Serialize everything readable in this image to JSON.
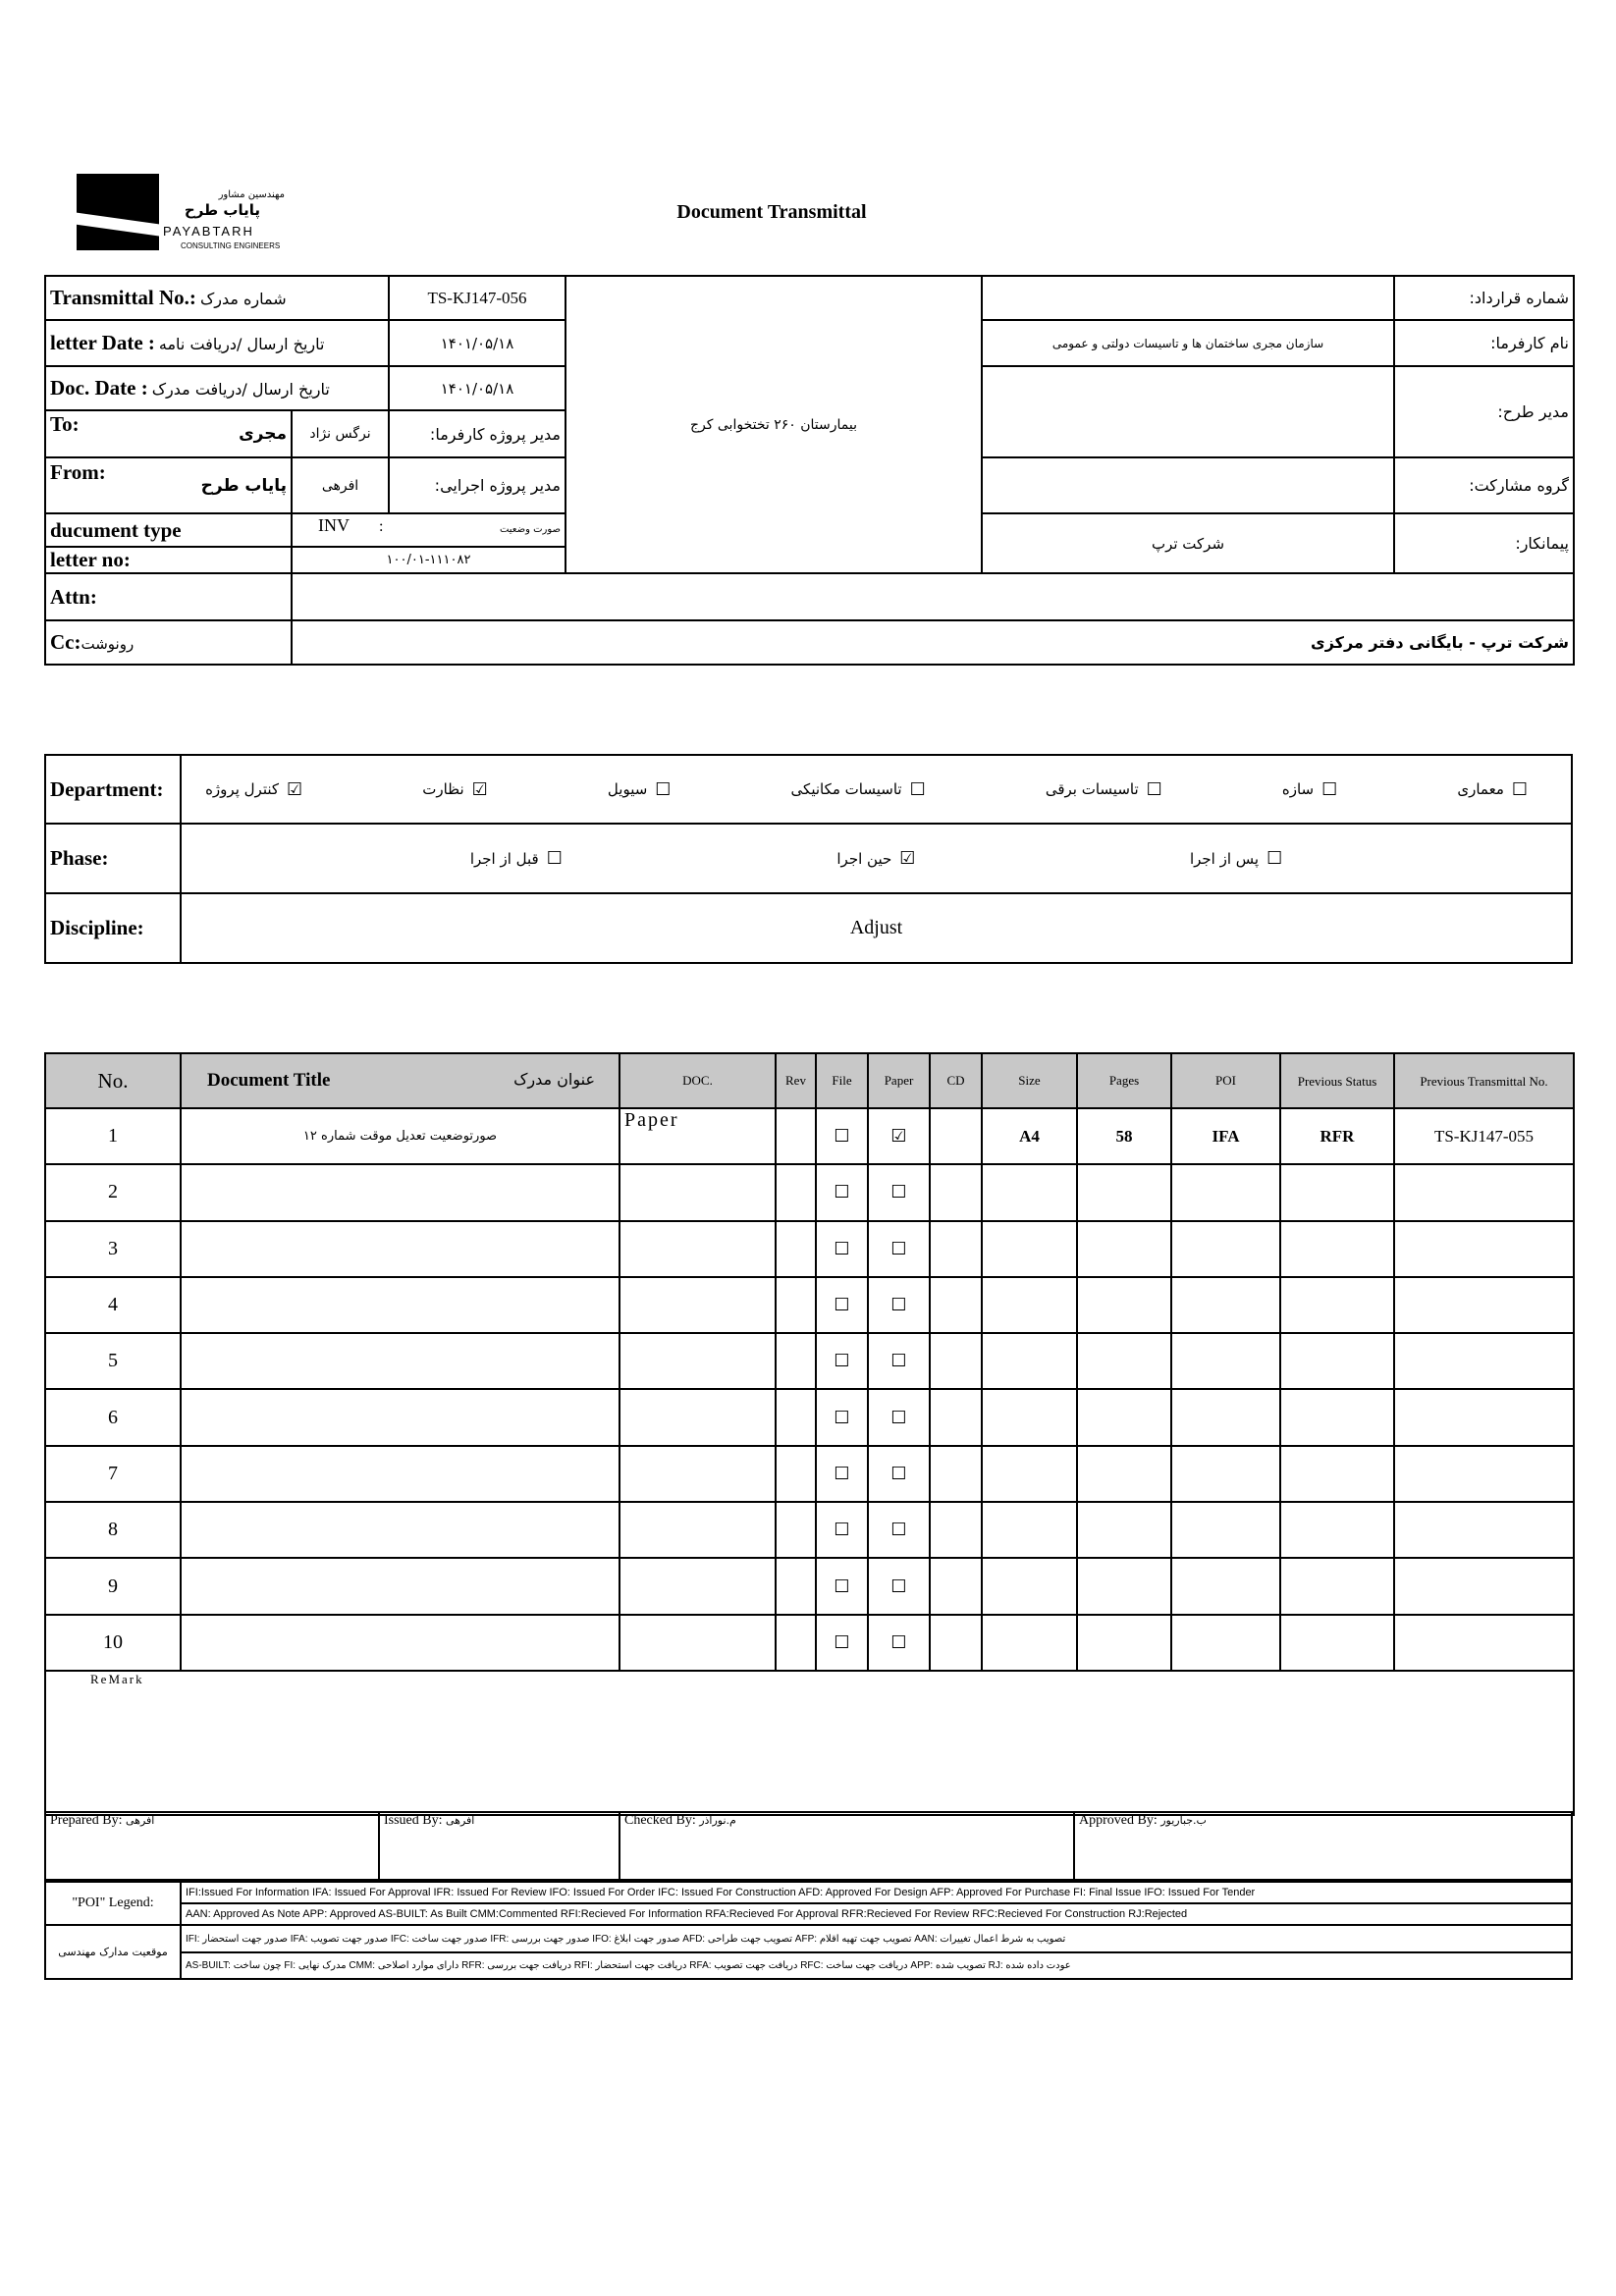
{
  "header": {
    "logo": {
      "fa_small": "مهندسین مشاور",
      "fa_name": "پایاب طرح",
      "en_name": "PAYABTARH",
      "en_sub": "CONSULTING ENGINEERS"
    },
    "title": "Document Transmittal"
  },
  "info": {
    "transmittal_label": "Transmittal No.:",
    "transmittal_label_fa": "شماره مدرک",
    "transmittal_no": "TS-KJ147-056",
    "letter_date_label": "letter Date  :",
    "letter_date_label_fa": "تاریخ ارسال /دریافت نامه",
    "letter_date": "۱۴۰۱/۰۵/۱۸",
    "doc_date_label": "Doc. Date :",
    "doc_date_label_fa": "تاریخ ارسال /دریافت مدرک",
    "doc_date": "۱۴۰۱/۰۵/۱۸",
    "to_label": "To:",
    "to_value": "مجری",
    "client_pm_name": "نرگس نژاد",
    "client_pm_label": "مدیر پروژه کارفرما:",
    "from_label": "From:",
    "from_value": "پایاب طرح",
    "exec_pm_name": "افرهی",
    "exec_pm_label": "مدیر پروژه اجرایی:",
    "doc_type_label": "ducument type",
    "doc_type": "INV",
    "doc_type_sep": ":",
    "doc_type_fa": "صورت وضعیت",
    "letter_no_label": "letter no:",
    "letter_no": "۱۰۰/۰۱-۱۱۱۰۸۲",
    "project": "بیمارستان ۲۶۰ تختخوابی کرج",
    "contract_no_label": "شماره قرارداد:",
    "contract_no": "",
    "client_label": "نام کارفرما:",
    "client": "سازمان مجری ساختمان ها و تاسیسات دولتی و عمومی",
    "plan_manager_label": "مدیر طرح:",
    "plan_manager": "",
    "partnership_label": "گروه مشارکت:",
    "partnership": "",
    "contractor_label": "پیمانکار:",
    "contractor": "شرکت ترپ",
    "attn_label": "Attn:",
    "attn": "",
    "cc_label": "Cc:",
    "cc_label_fa": "رونوشت",
    "cc": "شرکت ترپ - بایگانی دفتر مرکزی"
  },
  "classification": {
    "department_label": "Department:",
    "departments": [
      {
        "label": "معماری",
        "checked": false
      },
      {
        "label": "سازه",
        "checked": false
      },
      {
        "label": "تاسیسات برقی",
        "checked": false
      },
      {
        "label": "تاسیسات مکانیکی",
        "checked": false
      },
      {
        "label": "سیویل",
        "checked": false
      },
      {
        "label": "نظارت",
        "checked": true
      },
      {
        "label": "کنترل پروژه",
        "checked": true
      }
    ],
    "phase_label": "Phase:",
    "phases": [
      {
        "label": "پس از اجرا",
        "checked": false
      },
      {
        "label": "حین اجرا",
        "checked": true
      },
      {
        "label": "قبل از اجرا",
        "checked": false
      }
    ],
    "discipline_label": "Discipline:",
    "discipline": "Adjust"
  },
  "documents": {
    "headers": {
      "no": "No.",
      "title": "Document Title",
      "title_fa": "عنوان مدرک",
      "doc": "DOC.",
      "rev": "Rev",
      "file": "File",
      "paper": "Paper",
      "cd": "CD",
      "size": "Size",
      "pages": "Pages",
      "poi": "POI",
      "prev_status": "Previous Status",
      "prev_transmittal": "Previous Transmittal No."
    },
    "rows": [
      {
        "no": "1",
        "title": "صورتوضعیت تعدیل موقت شماره ۱۲",
        "doc": "Paper",
        "rev": "",
        "file": false,
        "paper": true,
        "cd": "",
        "size": "A4",
        "pages": "58",
        "poi": "IFA",
        "prev_status": "RFR",
        "prev_transmittal": "TS-KJ147-055"
      },
      {
        "no": "2",
        "title": "",
        "doc": "",
        "rev": "",
        "file": false,
        "paper": false,
        "cd": "",
        "size": "",
        "pages": "",
        "poi": "",
        "prev_status": "",
        "prev_transmittal": ""
      },
      {
        "no": "3",
        "title": "",
        "doc": "",
        "rev": "",
        "file": false,
        "paper": false,
        "cd": "",
        "size": "",
        "pages": "",
        "poi": "",
        "prev_status": "",
        "prev_transmittal": ""
      },
      {
        "no": "4",
        "title": "",
        "doc": "",
        "rev": "",
        "file": false,
        "paper": false,
        "cd": "",
        "size": "",
        "pages": "",
        "poi": "",
        "prev_status": "",
        "prev_transmittal": ""
      },
      {
        "no": "5",
        "title": "",
        "doc": "",
        "rev": "",
        "file": false,
        "paper": false,
        "cd": "",
        "size": "",
        "pages": "",
        "poi": "",
        "prev_status": "",
        "prev_transmittal": ""
      },
      {
        "no": "6",
        "title": "",
        "doc": "",
        "rev": "",
        "file": false,
        "paper": false,
        "cd": "",
        "size": "",
        "pages": "",
        "poi": "",
        "prev_status": "",
        "prev_transmittal": ""
      },
      {
        "no": "7",
        "title": "",
        "doc": "",
        "rev": "",
        "file": false,
        "paper": false,
        "cd": "",
        "size": "",
        "pages": "",
        "poi": "",
        "prev_status": "",
        "prev_transmittal": ""
      },
      {
        "no": "8",
        "title": "",
        "doc": "",
        "rev": "",
        "file": false,
        "paper": false,
        "cd": "",
        "size": "",
        "pages": "",
        "poi": "",
        "prev_status": "",
        "prev_transmittal": ""
      },
      {
        "no": "9",
        "title": "",
        "doc": "",
        "rev": "",
        "file": false,
        "paper": false,
        "cd": "",
        "size": "",
        "pages": "",
        "poi": "",
        "prev_status": "",
        "prev_transmittal": ""
      },
      {
        "no": "10",
        "title": "",
        "doc": "",
        "rev": "",
        "file": false,
        "paper": false,
        "cd": "",
        "size": "",
        "pages": "",
        "poi": "",
        "prev_status": "",
        "prev_transmittal": ""
      }
    ],
    "remark_label": "ReMark"
  },
  "signatures": {
    "prepared_label": "Prepared By:",
    "prepared": "افرهی",
    "issued_label": "Issued By:",
    "issued": "افرهی",
    "checked_label": "Checked By:",
    "checked": "م.نورآذر",
    "approved_label": "Approved By:",
    "approved": "ب.جباریور"
  },
  "legend": {
    "poi_label": "\"POI\" Legend:",
    "poi_line1": "IFI:Issued For Information  IFA: Issued For Approval  IFR: Issued For Review   IFO: Issued For Order  IFC: Issued For Construction AFD: Approved For Design AFP: Approved For Purchase  FI: Final Issue  IFO: Issued For Tender",
    "poi_line2": "AAN: Approved As Note  APP: Approved  AS-BUILT: As Built CMM:Commented  RFI:Recieved For Information  RFA:Recieved For Approval   RFR:Recieved For Review  RFC:Recieved For Construction  RJ:Rejected",
    "status_label": "موقعیت مدارک مهندسی",
    "status_line1": "IFI: صدور جهت استحضار   IFA: صدور جهت تصویب   IFC: صدور جهت ساخت   IFR: صدور جهت بررسی   IFO: صدور جهت ابلاغ   AFD: تصویب جهت طراحی   AFP: تصویب جهت تهیه اقلام   AAN: تصویب به شرط اعمال تغییرات",
    "status_line2": "AS-BUILT: چون ساخت   FI: مدرک نهایی   CMM: دارای موارد اصلاحی   RFR: دریافت جهت بررسی   RFI: دریافت جهت استحضار   RFA: دریافت جهت تصویب   RFC: دریافت جهت ساخت   APP: تصویب شده   RJ: عودت داده شده"
  }
}
